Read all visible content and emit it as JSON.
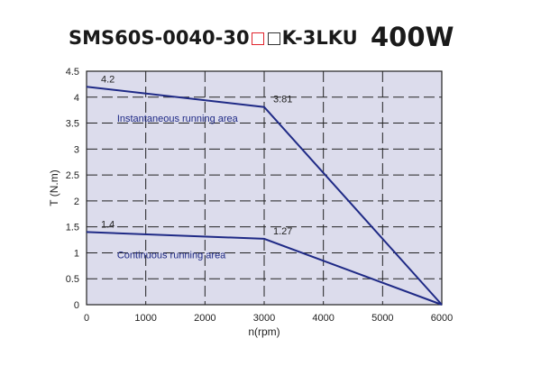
{
  "header": {
    "model_prefix": "SMS60S-0040-30",
    "model_suffix": "K-3LKU",
    "power": "400W"
  },
  "colors": {
    "plot_bg": "#dcdcec",
    "line": "#1f2a86",
    "box_red": "#e0242c"
  },
  "chart_data": {
    "type": "line",
    "xlabel": "n(rpm)",
    "ylabel": "T (N.m)",
    "xlim": [
      0,
      6000
    ],
    "ylim": [
      0,
      4.5
    ],
    "xticks": [
      0,
      1000,
      2000,
      3000,
      4000,
      5000,
      6000
    ],
    "yticks": [
      0,
      0.5,
      1,
      1.5,
      2,
      2.5,
      3,
      3.5,
      4,
      4.5
    ],
    "ytick_labels": [
      "0",
      "0.5",
      "1",
      "1.5",
      "2",
      "2.5",
      "3",
      "3.5",
      "4",
      "4.5"
    ],
    "grid": true,
    "series": [
      {
        "name": "Instantaneous running area",
        "x": [
          0,
          3000,
          6000
        ],
        "y": [
          4.2,
          3.81,
          0
        ],
        "point_labels": [
          "4.2",
          "3.81",
          ""
        ]
      },
      {
        "name": "Continuous running area",
        "x": [
          0,
          3000,
          6000
        ],
        "y": [
          1.4,
          1.27,
          0
        ],
        "point_labels": [
          "1.4",
          "1.27",
          ""
        ]
      }
    ]
  }
}
